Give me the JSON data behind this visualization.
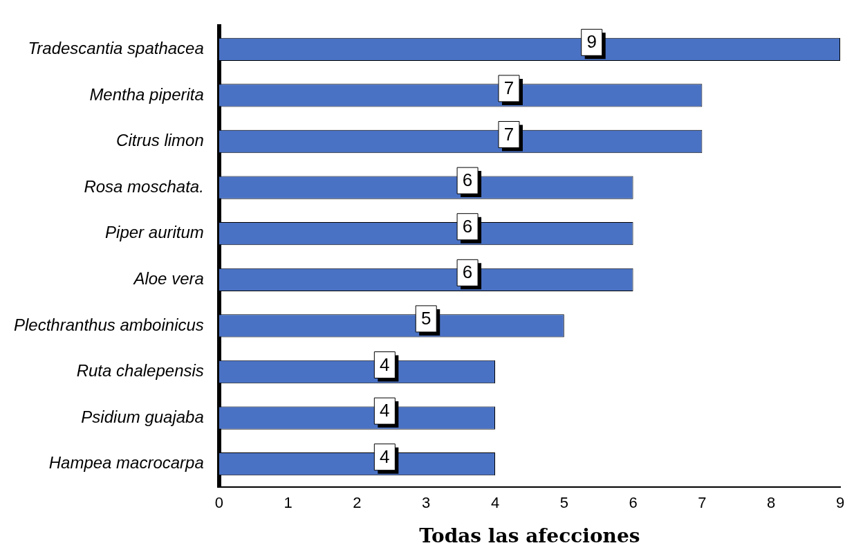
{
  "chart_data": {
    "type": "bar",
    "orientation": "horizontal",
    "xlabel": "Todas las afecciones",
    "categories": [
      "Tradescantia spathacea",
      "Mentha piperita",
      "Citrus limon",
      "Rosa moschata.",
      "Piper auritum",
      "Aloe vera",
      "Plecthranthus amboinicus",
      "Ruta chalepensis",
      "Psidium guajaba",
      "Hampea macrocarpa"
    ],
    "values": [
      9,
      7,
      7,
      6,
      6,
      6,
      5,
      4,
      4,
      4
    ],
    "color": "#4a72c4",
    "xlim": [
      0,
      9
    ],
    "xticks": [
      0,
      1,
      2,
      3,
      4,
      5,
      6,
      7,
      8,
      9
    ],
    "data_labels": true,
    "grid": false,
    "legend": false
  }
}
